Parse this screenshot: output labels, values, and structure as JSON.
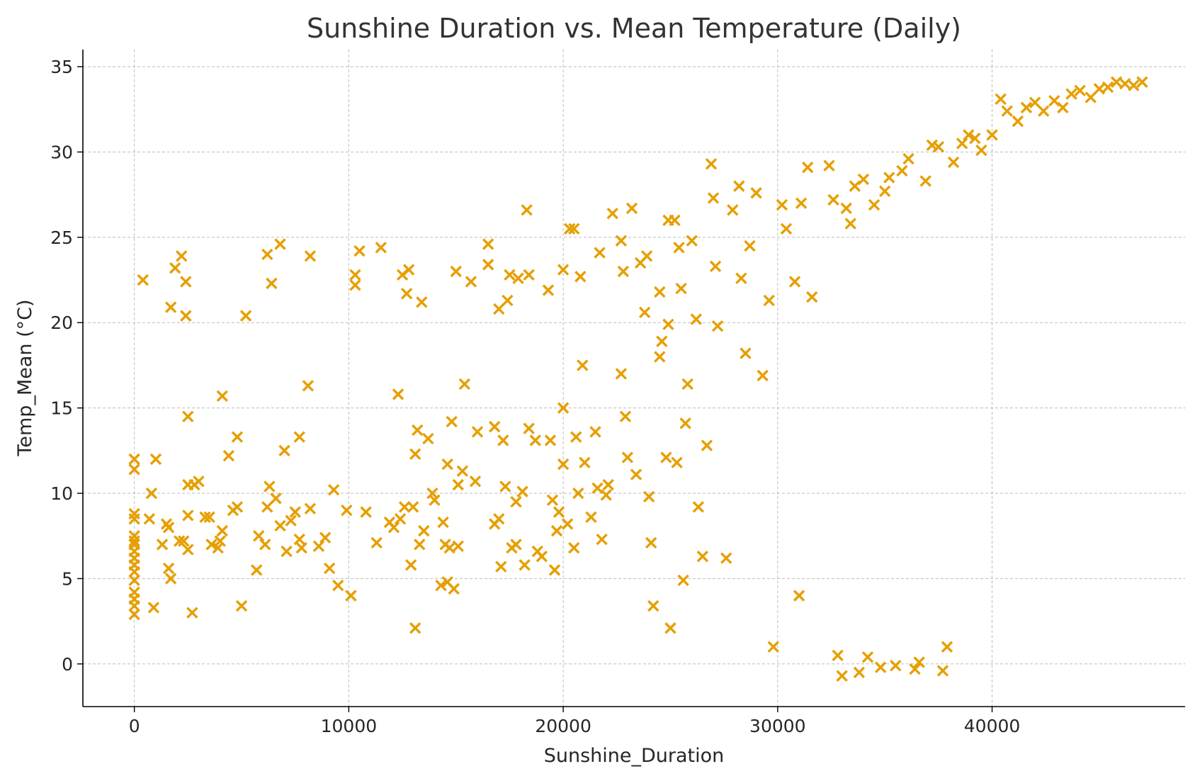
{
  "chart_data": {
    "type": "scatter",
    "title": "Sunshine Duration vs. Mean Temperature (Daily)",
    "xlabel": "Sunshine_Duration",
    "ylabel": "Temp_Mean (°C)",
    "xlim": [
      -2400,
      49000
    ],
    "ylim": [
      -2.5,
      36
    ],
    "xticks": [
      0,
      10000,
      20000,
      30000,
      40000
    ],
    "yticks": [
      0,
      5,
      10,
      15,
      20,
      25,
      30,
      35
    ],
    "marker": "x",
    "grid": true,
    "color": "#E69F00",
    "series": [
      {
        "points": [
          [
            0,
            12.0
          ],
          [
            0,
            11.4
          ],
          [
            0,
            8.8
          ],
          [
            0,
            8.5
          ],
          [
            0,
            7.5
          ],
          [
            0,
            7.2
          ],
          [
            0,
            7.0
          ],
          [
            0,
            6.6
          ],
          [
            0,
            6.2
          ],
          [
            0,
            5.8
          ],
          [
            0,
            5.4
          ],
          [
            0,
            4.9
          ],
          [
            0,
            4.2
          ],
          [
            0,
            3.8
          ],
          [
            0,
            3.4
          ],
          [
            0,
            2.9
          ],
          [
            400,
            22.5
          ],
          [
            700,
            8.5
          ],
          [
            800,
            10.0
          ],
          [
            900,
            3.3
          ],
          [
            1000,
            12.0
          ],
          [
            1300,
            7.0
          ],
          [
            1500,
            8.2
          ],
          [
            1600,
            8.0
          ],
          [
            1600,
            5.6
          ],
          [
            1700,
            5.0
          ],
          [
            1700,
            20.9
          ],
          [
            1900,
            23.2
          ],
          [
            2100,
            7.2
          ],
          [
            2200,
            23.9
          ],
          [
            2300,
            7.2
          ],
          [
            2400,
            20.4
          ],
          [
            2400,
            22.4
          ],
          [
            2500,
            6.7
          ],
          [
            2500,
            8.7
          ],
          [
            2500,
            10.5
          ],
          [
            2500,
            14.5
          ],
          [
            2700,
            3.0
          ],
          [
            2800,
            10.5
          ],
          [
            3000,
            10.7
          ],
          [
            3300,
            8.6
          ],
          [
            3500,
            8.6
          ],
          [
            3600,
            7.0
          ],
          [
            3900,
            6.8
          ],
          [
            4000,
            7.2
          ],
          [
            4100,
            7.8
          ],
          [
            4100,
            15.7
          ],
          [
            4400,
            12.2
          ],
          [
            4600,
            9.0
          ],
          [
            4800,
            13.3
          ],
          [
            4800,
            9.2
          ],
          [
            5000,
            3.4
          ],
          [
            5200,
            20.4
          ],
          [
            5700,
            5.5
          ],
          [
            5800,
            7.5
          ],
          [
            6100,
            7.0
          ],
          [
            6200,
            9.2
          ],
          [
            6200,
            24.0
          ],
          [
            6300,
            10.4
          ],
          [
            6400,
            22.3
          ],
          [
            6600,
            9.7
          ],
          [
            6800,
            8.1
          ],
          [
            6800,
            24.6
          ],
          [
            7000,
            12.5
          ],
          [
            7100,
            6.6
          ],
          [
            7300,
            8.4
          ],
          [
            7500,
            8.9
          ],
          [
            7700,
            13.3
          ],
          [
            7700,
            7.3
          ],
          [
            7800,
            6.8
          ],
          [
            8100,
            16.3
          ],
          [
            8200,
            9.1
          ],
          [
            8200,
            23.9
          ],
          [
            8600,
            6.9
          ],
          [
            8900,
            7.4
          ],
          [
            9100,
            5.6
          ],
          [
            9300,
            10.2
          ],
          [
            9500,
            4.6
          ],
          [
            9900,
            9.0
          ],
          [
            10100,
            4.0
          ],
          [
            10300,
            22.8
          ],
          [
            10300,
            22.2
          ],
          [
            10500,
            24.2
          ],
          [
            10800,
            8.9
          ],
          [
            11300,
            7.1
          ],
          [
            11500,
            24.4
          ],
          [
            11900,
            8.3
          ],
          [
            12100,
            8.0
          ],
          [
            12300,
            15.8
          ],
          [
            12400,
            8.5
          ],
          [
            12500,
            22.8
          ],
          [
            12600,
            9.2
          ],
          [
            12700,
            21.7
          ],
          [
            12800,
            23.1
          ],
          [
            12900,
            5.8
          ],
          [
            13000,
            9.2
          ],
          [
            13100,
            2.1
          ],
          [
            13100,
            12.3
          ],
          [
            13200,
            13.7
          ],
          [
            13300,
            7.0
          ],
          [
            13400,
            21.2
          ],
          [
            13500,
            7.8
          ],
          [
            13700,
            13.2
          ],
          [
            13900,
            10.0
          ],
          [
            14000,
            9.6
          ],
          [
            14300,
            4.6
          ],
          [
            14400,
            8.3
          ],
          [
            14500,
            7.0
          ],
          [
            14600,
            4.8
          ],
          [
            14600,
            11.7
          ],
          [
            14700,
            6.8
          ],
          [
            14800,
            14.2
          ],
          [
            14900,
            4.4
          ],
          [
            15000,
            23.0
          ],
          [
            15100,
            10.5
          ],
          [
            15100,
            6.9
          ],
          [
            15300,
            11.3
          ],
          [
            15400,
            16.4
          ],
          [
            15700,
            22.4
          ],
          [
            15900,
            10.7
          ],
          [
            16000,
            13.6
          ],
          [
            16500,
            24.6
          ],
          [
            16500,
            23.4
          ],
          [
            16800,
            8.2
          ],
          [
            16800,
            13.9
          ],
          [
            17000,
            8.5
          ],
          [
            17000,
            20.8
          ],
          [
            17100,
            5.7
          ],
          [
            17200,
            13.1
          ],
          [
            17300,
            10.4
          ],
          [
            17400,
            21.3
          ],
          [
            17500,
            22.8
          ],
          [
            17600,
            6.8
          ],
          [
            17800,
            7.0
          ],
          [
            17800,
            9.5
          ],
          [
            17900,
            22.6
          ],
          [
            18100,
            10.1
          ],
          [
            18200,
            5.8
          ],
          [
            18300,
            26.6
          ],
          [
            18400,
            13.8
          ],
          [
            18400,
            22.8
          ],
          [
            18700,
            13.1
          ],
          [
            18800,
            6.6
          ],
          [
            19000,
            6.3
          ],
          [
            19300,
            21.9
          ],
          [
            19400,
            13.1
          ],
          [
            19500,
            9.6
          ],
          [
            19600,
            5.5
          ],
          [
            19700,
            7.8
          ],
          [
            19800,
            8.9
          ],
          [
            20000,
            23.1
          ],
          [
            20000,
            11.7
          ],
          [
            20000,
            15.0
          ],
          [
            20200,
            8.2
          ],
          [
            20300,
            25.5
          ],
          [
            20500,
            25.5
          ],
          [
            20500,
            6.8
          ],
          [
            20600,
            13.3
          ],
          [
            20700,
            10.0
          ],
          [
            20800,
            22.7
          ],
          [
            20900,
            17.5
          ],
          [
            21000,
            11.8
          ],
          [
            21300,
            8.6
          ],
          [
            21500,
            13.6
          ],
          [
            21600,
            10.3
          ],
          [
            21700,
            24.1
          ],
          [
            21800,
            7.3
          ],
          [
            22000,
            9.9
          ],
          [
            22100,
            10.5
          ],
          [
            22300,
            26.4
          ],
          [
            22700,
            24.8
          ],
          [
            22700,
            17.0
          ],
          [
            22800,
            23.0
          ],
          [
            22900,
            14.5
          ],
          [
            23000,
            12.1
          ],
          [
            23200,
            26.7
          ],
          [
            23400,
            11.1
          ],
          [
            23600,
            23.5
          ],
          [
            23800,
            20.6
          ],
          [
            23900,
            23.9
          ],
          [
            24000,
            9.8
          ],
          [
            24100,
            7.1
          ],
          [
            24200,
            3.4
          ],
          [
            24500,
            21.8
          ],
          [
            24500,
            18.0
          ],
          [
            24600,
            18.9
          ],
          [
            24800,
            12.1
          ],
          [
            24900,
            19.9
          ],
          [
            24900,
            26.0
          ],
          [
            25000,
            2.1
          ],
          [
            25200,
            26.0
          ],
          [
            25300,
            11.8
          ],
          [
            25400,
            24.4
          ],
          [
            25500,
            22.0
          ],
          [
            25600,
            4.9
          ],
          [
            25700,
            14.1
          ],
          [
            25800,
            16.4
          ],
          [
            26000,
            24.8
          ],
          [
            26200,
            20.2
          ],
          [
            26300,
            9.2
          ],
          [
            26500,
            6.3
          ],
          [
            26700,
            12.8
          ],
          [
            26900,
            29.3
          ],
          [
            27000,
            27.3
          ],
          [
            27100,
            23.3
          ],
          [
            27200,
            19.8
          ],
          [
            27600,
            6.2
          ],
          [
            27900,
            26.6
          ],
          [
            28200,
            28.0
          ],
          [
            28300,
            22.6
          ],
          [
            28500,
            18.2
          ],
          [
            28700,
            24.5
          ],
          [
            29000,
            27.6
          ],
          [
            29300,
            16.9
          ],
          [
            29600,
            21.3
          ],
          [
            29800,
            1.0
          ],
          [
            30200,
            26.9
          ],
          [
            30400,
            25.5
          ],
          [
            30800,
            22.4
          ],
          [
            31000,
            4.0
          ],
          [
            31100,
            27.0
          ],
          [
            31400,
            29.1
          ],
          [
            31600,
            21.5
          ],
          [
            32400,
            29.2
          ],
          [
            32600,
            27.2
          ],
          [
            32800,
            0.5
          ],
          [
            33000,
            -0.7
          ],
          [
            33200,
            26.7
          ],
          [
            33400,
            25.8
          ],
          [
            33600,
            28.0
          ],
          [
            33800,
            -0.5
          ],
          [
            34000,
            28.4
          ],
          [
            34200,
            0.4
          ],
          [
            34500,
            26.9
          ],
          [
            34800,
            -0.2
          ],
          [
            35000,
            27.7
          ],
          [
            35200,
            28.5
          ],
          [
            35500,
            -0.1
          ],
          [
            35800,
            28.9
          ],
          [
            36100,
            29.6
          ],
          [
            36400,
            -0.3
          ],
          [
            36600,
            0.1
          ],
          [
            36900,
            28.3
          ],
          [
            37200,
            30.4
          ],
          [
            37500,
            30.3
          ],
          [
            37700,
            -0.4
          ],
          [
            37900,
            1.0
          ],
          [
            38200,
            29.4
          ],
          [
            38600,
            30.5
          ],
          [
            38900,
            31.0
          ],
          [
            39200,
            30.8
          ],
          [
            39500,
            30.1
          ],
          [
            40000,
            31.0
          ],
          [
            40400,
            33.1
          ],
          [
            40700,
            32.4
          ],
          [
            41200,
            31.8
          ],
          [
            41600,
            32.6
          ],
          [
            42000,
            32.9
          ],
          [
            42400,
            32.4
          ],
          [
            42900,
            33.0
          ],
          [
            43300,
            32.6
          ],
          [
            43700,
            33.4
          ],
          [
            44100,
            33.6
          ],
          [
            44600,
            33.2
          ],
          [
            45000,
            33.7
          ],
          [
            45400,
            33.8
          ],
          [
            45800,
            34.1
          ],
          [
            46200,
            34.0
          ],
          [
            46600,
            33.9
          ],
          [
            47000,
            34.1
          ]
        ]
      }
    ]
  }
}
